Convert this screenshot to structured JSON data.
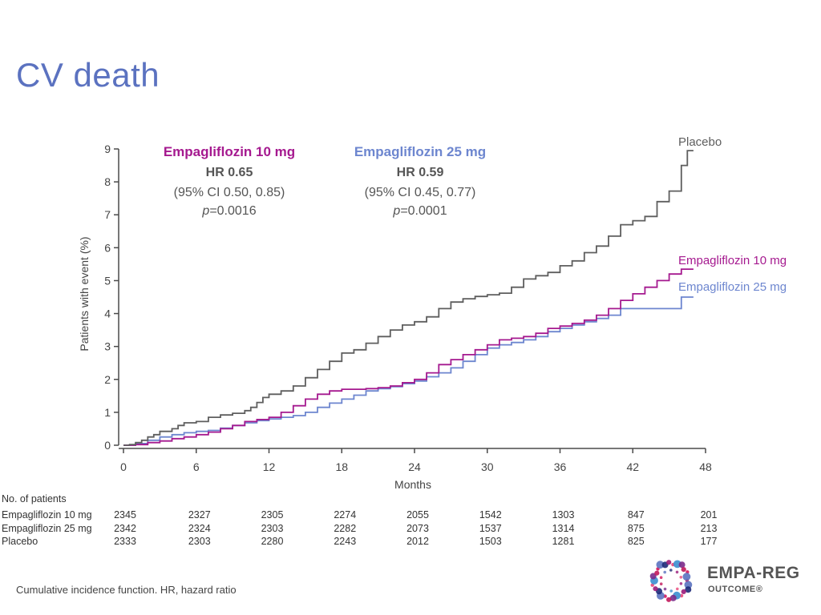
{
  "slide": {
    "title": "CV death",
    "footnote": "Cumulative incidence function. HR, hazard ratio"
  },
  "logo": {
    "name": "EMPA-REG",
    "subtitle": "OUTCOME®"
  },
  "colors": {
    "empa10": "#a5198f",
    "empa25": "#6d86cf",
    "placebo": "#5e5e5e",
    "axis": "#4a4a4a",
    "title": "#5b72c0"
  },
  "chart_data": {
    "type": "line",
    "step": true,
    "xlabel": "Months",
    "ylabel": "Patients with event (%)",
    "xlim": [
      0,
      48
    ],
    "ylim": [
      0,
      9
    ],
    "xticks": [
      0,
      6,
      12,
      18,
      24,
      30,
      36,
      42,
      48
    ],
    "yticks": [
      0,
      1,
      2,
      3,
      4,
      5,
      6,
      7,
      8,
      9
    ],
    "grid": false,
    "legend": "line-end labels",
    "annotations": [
      {
        "series": "empa10",
        "name": "Empagliflozin 10 mg",
        "hr": "HR 0.65",
        "ci": "(95% CI 0.50, 0.85)",
        "p_prefix": "p",
        "p_value": "=0.0016"
      },
      {
        "series": "empa25",
        "name": "Empagliflozin 25 mg",
        "hr": "HR 0.59",
        "ci": "(95% CI 0.45, 0.77)",
        "p_prefix": "p",
        "p_value": "=0.0001"
      }
    ],
    "series": [
      {
        "id": "placebo",
        "name": "Placebo",
        "points": [
          [
            0,
            0
          ],
          [
            0.5,
            0.02
          ],
          [
            1,
            0.08
          ],
          [
            1.5,
            0.15
          ],
          [
            2,
            0.25
          ],
          [
            2.5,
            0.32
          ],
          [
            3,
            0.42
          ],
          [
            4,
            0.5
          ],
          [
            4.5,
            0.6
          ],
          [
            5,
            0.68
          ],
          [
            6,
            0.72
          ],
          [
            7,
            0.85
          ],
          [
            8,
            0.92
          ],
          [
            9,
            0.97
          ],
          [
            10,
            1.05
          ],
          [
            10.5,
            1.15
          ],
          [
            11,
            1.3
          ],
          [
            11.5,
            1.45
          ],
          [
            12,
            1.55
          ],
          [
            13,
            1.65
          ],
          [
            14,
            1.8
          ],
          [
            15,
            2.05
          ],
          [
            16,
            2.3
          ],
          [
            17,
            2.55
          ],
          [
            18,
            2.8
          ],
          [
            19,
            2.9
          ],
          [
            20,
            3.1
          ],
          [
            21,
            3.3
          ],
          [
            22,
            3.5
          ],
          [
            23,
            3.65
          ],
          [
            24,
            3.75
          ],
          [
            25,
            3.9
          ],
          [
            26,
            4.15
          ],
          [
            27,
            4.35
          ],
          [
            28,
            4.45
          ],
          [
            29,
            4.52
          ],
          [
            30,
            4.57
          ],
          [
            31,
            4.62
          ],
          [
            32,
            4.8
          ],
          [
            33,
            5.05
          ],
          [
            34,
            5.15
          ],
          [
            35,
            5.25
          ],
          [
            36,
            5.45
          ],
          [
            37,
            5.6
          ],
          [
            38,
            5.85
          ],
          [
            39,
            6.05
          ],
          [
            40,
            6.35
          ],
          [
            41,
            6.7
          ],
          [
            42,
            6.82
          ],
          [
            43,
            6.95
          ],
          [
            44,
            7.4
          ],
          [
            45,
            7.72
          ],
          [
            46,
            8.5
          ],
          [
            46.5,
            8.95
          ],
          [
            47,
            8.95
          ]
        ],
        "end_label": "Placebo"
      },
      {
        "id": "empa10",
        "name": "Empagliflozin 10 mg",
        "points": [
          [
            0,
            0
          ],
          [
            1,
            0.02
          ],
          [
            2,
            0.08
          ],
          [
            3,
            0.13
          ],
          [
            4,
            0.2
          ],
          [
            5,
            0.25
          ],
          [
            6,
            0.32
          ],
          [
            7,
            0.4
          ],
          [
            8,
            0.5
          ],
          [
            9,
            0.6
          ],
          [
            10,
            0.72
          ],
          [
            11,
            0.78
          ],
          [
            12,
            0.85
          ],
          [
            13,
            1.0
          ],
          [
            14,
            1.2
          ],
          [
            15,
            1.4
          ],
          [
            16,
            1.55
          ],
          [
            17,
            1.65
          ],
          [
            18,
            1.7
          ],
          [
            19,
            1.7
          ],
          [
            20,
            1.72
          ],
          [
            21,
            1.75
          ],
          [
            22,
            1.8
          ],
          [
            23,
            1.9
          ],
          [
            24,
            2.0
          ],
          [
            25,
            2.2
          ],
          [
            26,
            2.45
          ],
          [
            27,
            2.6
          ],
          [
            28,
            2.75
          ],
          [
            29,
            2.9
          ],
          [
            30,
            3.05
          ],
          [
            31,
            3.2
          ],
          [
            32,
            3.25
          ],
          [
            33,
            3.3
          ],
          [
            34,
            3.4
          ],
          [
            35,
            3.55
          ],
          [
            36,
            3.62
          ],
          [
            37,
            3.7
          ],
          [
            38,
            3.8
          ],
          [
            39,
            3.95
          ],
          [
            40,
            4.15
          ],
          [
            41,
            4.4
          ],
          [
            42,
            4.6
          ],
          [
            43,
            4.8
          ],
          [
            44,
            5.0
          ],
          [
            45,
            5.2
          ],
          [
            46,
            5.35
          ],
          [
            47,
            5.35
          ]
        ],
        "end_label": "Empagliflozin 10 mg"
      },
      {
        "id": "empa25",
        "name": "Empagliflozin 25 mg",
        "points": [
          [
            0,
            0
          ],
          [
            1,
            0.05
          ],
          [
            2,
            0.15
          ],
          [
            3,
            0.25
          ],
          [
            4,
            0.32
          ],
          [
            5,
            0.38
          ],
          [
            6,
            0.42
          ],
          [
            7,
            0.45
          ],
          [
            8,
            0.52
          ],
          [
            9,
            0.6
          ],
          [
            10,
            0.68
          ],
          [
            11,
            0.75
          ],
          [
            12,
            0.8
          ],
          [
            13,
            0.85
          ],
          [
            14,
            0.9
          ],
          [
            15,
            1.0
          ],
          [
            16,
            1.15
          ],
          [
            17,
            1.28
          ],
          [
            18,
            1.4
          ],
          [
            19,
            1.52
          ],
          [
            20,
            1.65
          ],
          [
            21,
            1.72
          ],
          [
            22,
            1.78
          ],
          [
            23,
            1.87
          ],
          [
            24,
            1.95
          ],
          [
            25,
            2.08
          ],
          [
            26,
            2.2
          ],
          [
            27,
            2.35
          ],
          [
            28,
            2.55
          ],
          [
            29,
            2.75
          ],
          [
            30,
            2.95
          ],
          [
            31,
            3.05
          ],
          [
            32,
            3.12
          ],
          [
            33,
            3.2
          ],
          [
            34,
            3.3
          ],
          [
            35,
            3.45
          ],
          [
            36,
            3.55
          ],
          [
            37,
            3.65
          ],
          [
            38,
            3.75
          ],
          [
            39,
            3.85
          ],
          [
            40,
            3.95
          ],
          [
            41,
            4.15
          ],
          [
            42,
            4.15
          ],
          [
            43,
            4.15
          ],
          [
            44,
            4.15
          ],
          [
            45,
            4.15
          ],
          [
            46,
            4.5
          ],
          [
            47,
            4.5
          ]
        ],
        "end_label": "Empagliflozin 25 mg"
      }
    ],
    "risk_table": {
      "title": "No. of patients",
      "times": [
        0,
        6,
        12,
        18,
        24,
        30,
        36,
        42,
        48
      ],
      "rows": [
        {
          "label": "Empagliflozin 10 mg",
          "values": [
            "2345",
            "2327",
            "2305",
            "2274",
            "2055",
            "1542",
            "1303",
            "847",
            "201"
          ]
        },
        {
          "label": "Empagliflozin 25 mg",
          "values": [
            "2342",
            "2324",
            "2303",
            "2282",
            "2073",
            "1537",
            "1314",
            "875",
            "213"
          ]
        },
        {
          "label": "Placebo",
          "values": [
            "2333",
            "2303",
            "2280",
            "2243",
            "2012",
            "1503",
            "1281",
            "825",
            "177"
          ]
        }
      ]
    }
  }
}
